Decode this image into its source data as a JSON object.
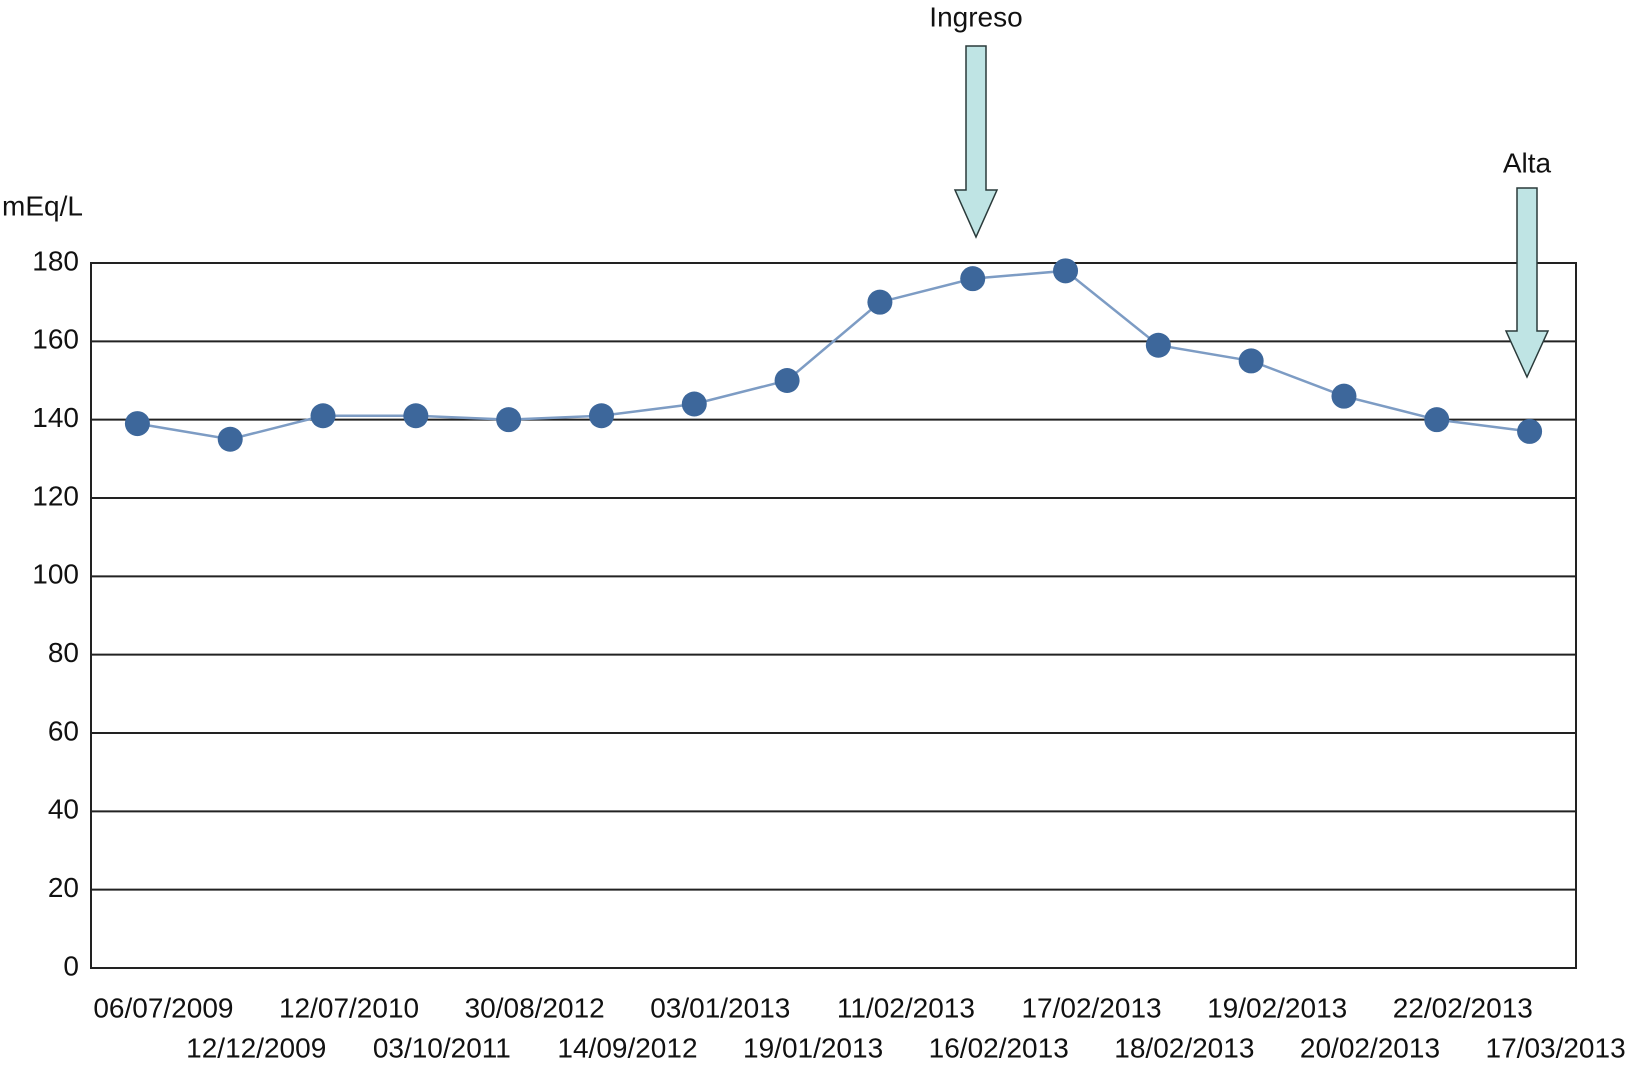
{
  "chart_data": {
    "type": "line",
    "y_label": "mEq/L",
    "categories": [
      "06/07/2009",
      "12/12/2009",
      "12/07/2010",
      "03/10/2011",
      "30/08/2012",
      "14/09/2012",
      "03/01/2013",
      "19/01/2013",
      "11/02/2013",
      "16/02/2013",
      "17/02/2013",
      "18/02/2013",
      "19/02/2013",
      "20/02/2013",
      "22/02/2013",
      "17/03/2013"
    ],
    "series": [
      {
        "color": "#3d679b",
        "values": [
          139,
          135,
          141,
          141,
          140,
          141,
          144,
          150,
          170,
          176,
          178,
          159,
          155,
          146,
          140,
          137
        ]
      }
    ],
    "ylim": [
      0,
      180
    ],
    "yticks": [
      0,
      20,
      40,
      60,
      80,
      100,
      120,
      140,
      160,
      180
    ],
    "grid": true,
    "annotations": [
      "Ingreso",
      "Alta"
    ]
  }
}
